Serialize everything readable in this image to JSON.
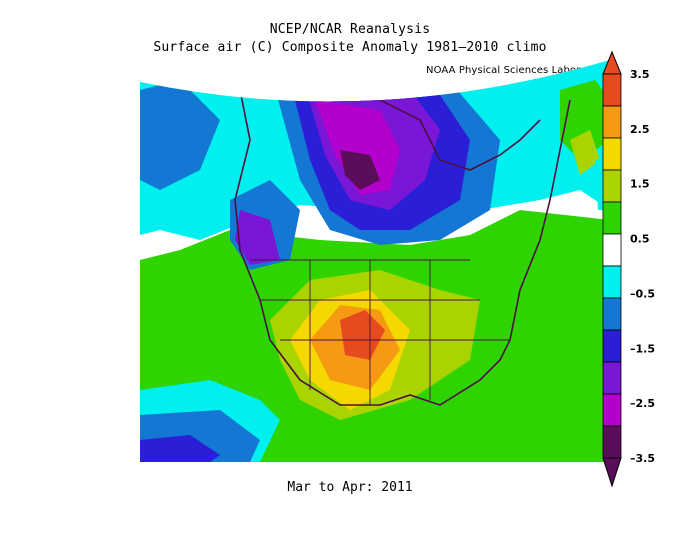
{
  "header": {
    "line1": "NCEP/NCAR Reanalysis",
    "line2": "Surface air (C) Composite Anomaly 1981–2010 climo",
    "credit": "NOAA Physical Sciences Laboratory"
  },
  "footer": {
    "period": "Mar to Apr: 2011"
  },
  "colorbar": {
    "labels": [
      "3.5",
      "2.5",
      "1.5",
      "0.5",
      "–0.5",
      "–1.5",
      "–2.5",
      "–3.5"
    ],
    "colors": [
      "#e64a1f",
      "#f59a12",
      "#f5d800",
      "#a9d400",
      "#2fd400",
      "#ffffff",
      "#00f0f0",
      "#1477d4",
      "#2a1fd6",
      "#7a16d6",
      "#b300cc",
      "#5a0e5a"
    ]
  }
}
